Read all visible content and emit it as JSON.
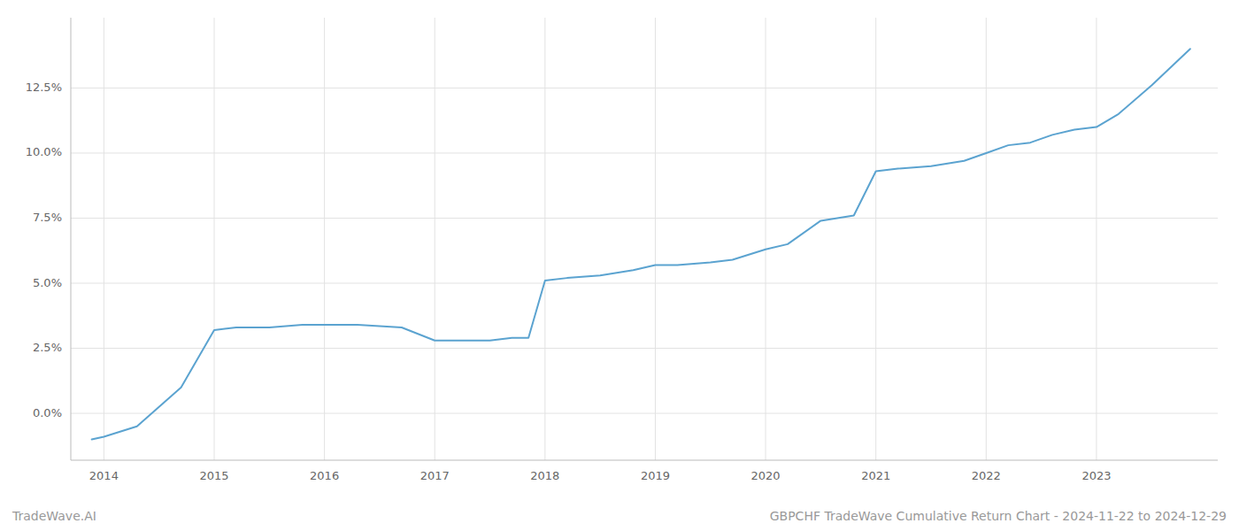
{
  "chart_data": {
    "type": "line",
    "x": [
      2013.89,
      2014.0,
      2014.3,
      2014.7,
      2015.0,
      2015.2,
      2015.5,
      2015.8,
      2016.0,
      2016.3,
      2016.7,
      2017.0,
      2017.2,
      2017.5,
      2017.7,
      2017.85,
      2018.0,
      2018.2,
      2018.5,
      2018.8,
      2019.0,
      2019.2,
      2019.5,
      2019.7,
      2020.0,
      2020.2,
      2020.5,
      2020.8,
      2021.0,
      2021.2,
      2021.5,
      2021.8,
      2022.0,
      2022.2,
      2022.4,
      2022.6,
      2022.8,
      2023.0,
      2023.2,
      2023.5,
      2023.85
    ],
    "values": [
      -0.01,
      -0.009,
      -0.005,
      0.01,
      0.032,
      0.033,
      0.033,
      0.034,
      0.034,
      0.034,
      0.033,
      0.028,
      0.028,
      0.028,
      0.029,
      0.029,
      0.051,
      0.052,
      0.053,
      0.055,
      0.057,
      0.057,
      0.058,
      0.059,
      0.063,
      0.065,
      0.074,
      0.076,
      0.093,
      0.094,
      0.095,
      0.097,
      0.1,
      0.103,
      0.104,
      0.107,
      0.109,
      0.11,
      0.115,
      0.126,
      0.14
    ],
    "color": "#5ba3d0",
    "xlim": [
      2013.7,
      2024.1
    ],
    "ylim": [
      -0.018,
      0.152
    ],
    "xticks": [
      2014,
      2015,
      2016,
      2017,
      2018,
      2019,
      2020,
      2021,
      2022,
      2023
    ],
    "yticks": [
      {
        "value": 0.0,
        "label": "0.0%"
      },
      {
        "value": 0.025,
        "label": "2.5%"
      },
      {
        "value": 0.05,
        "label": "5.0%"
      },
      {
        "value": 0.075,
        "label": "7.5%"
      },
      {
        "value": 0.1,
        "label": "10.0%"
      },
      {
        "value": 0.125,
        "label": "12.5%"
      }
    ],
    "grid": true,
    "annotations": [
      "TradeWave.AI",
      "GBPCHF TradeWave Cumulative Return Chart - 2024-11-22 to 2024-12-29"
    ]
  }
}
